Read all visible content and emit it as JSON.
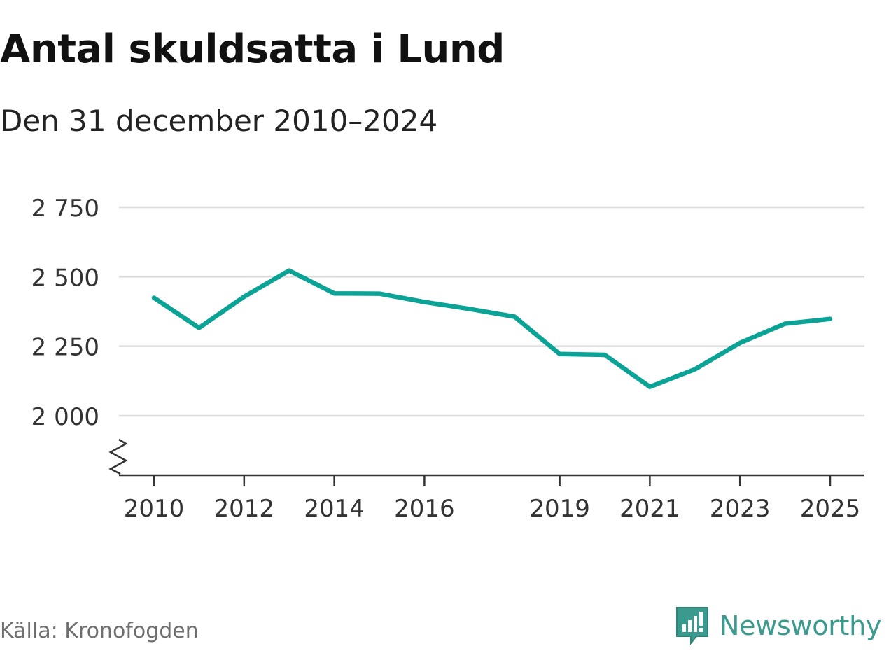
{
  "title": "Antal skuldsatta i Lund",
  "subtitle": "Den 31 december 2010–2024",
  "source": "Källa: Kronofogden",
  "brand": {
    "name": "Newsworthy",
    "icon": "newsworthy-logo-icon",
    "color": "#3a9a8e"
  },
  "chart_data": {
    "type": "line",
    "title": "Antal skuldsatta i Lund",
    "subtitle": "Den 31 december 2010–2024",
    "xlabel": "",
    "ylabel": "",
    "xlim": [
      2009.6,
      2025.8
    ],
    "ylim": [
      1785,
      2750
    ],
    "y_ticks": [
      2000,
      2250,
      2500,
      2750
    ],
    "y_tick_labels": [
      "2 000",
      "2 250",
      "2 500",
      "2 750"
    ],
    "x_ticks": [
      2010,
      2012,
      2014,
      2016,
      2019,
      2021,
      2023,
      2025
    ],
    "x_tick_labels": [
      "2010",
      "2012",
      "2014",
      "2016",
      "2019",
      "2021",
      "2023",
      "2025"
    ],
    "axis_break": true,
    "grid": true,
    "series": [
      {
        "name": "Antal skuldsatta",
        "color": "#0aa396",
        "x": [
          2010,
          2011,
          2012,
          2013,
          2014,
          2015,
          2016,
          2017,
          2018,
          2019,
          2020,
          2021,
          2022,
          2023,
          2024,
          2025
        ],
        "values": [
          2424,
          2316,
          2428,
          2522,
          2440,
          2439,
          2409,
          2384,
          2356,
          2222,
          2219,
          2104,
          2167,
          2262,
          2331,
          2348
        ]
      }
    ]
  }
}
